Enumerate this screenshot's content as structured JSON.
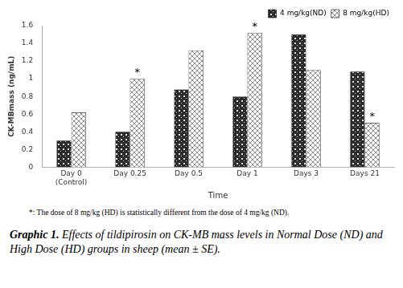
{
  "chart_data": {
    "type": "bar",
    "x_label": "Time",
    "y_label": "CK-MBmass (ng/mL)",
    "categories": [
      "Day 0 (Control)",
      "Day 0.25",
      "Day 0.5",
      "Day 1",
      "Days 3",
      "Days 21"
    ],
    "series": [
      {
        "name": "4 mg/kg(ND)",
        "color": "#2b2b2b",
        "values": [
          0.3,
          0.4,
          0.88,
          0.8,
          1.5,
          1.08
        ]
      },
      {
        "name": "8 mg/kg(HD)",
        "color": "#8c8c8c",
        "values": [
          0.62,
          1.0,
          1.32,
          1.52,
          1.1,
          0.5
        ]
      }
    ],
    "ylim": [
      0,
      1.6
    ],
    "yticks": [
      0,
      0.2,
      0.4,
      0.6,
      0.8,
      1,
      1.2,
      1.4,
      1.6
    ],
    "grid": false,
    "legend": "top-right",
    "annotations": [
      {
        "category": "Day 0.25",
        "series": "8 mg/kg(HD)",
        "text": "*"
      },
      {
        "category": "Day 1",
        "series": "8 mg/kg(HD)",
        "text": "*"
      },
      {
        "category": "Days 21",
        "series": "8 mg/kg(HD)",
        "text": "*"
      }
    ],
    "footnote": "*: The dose of 8 mg/kg (HD) is statistically different from the dose of 4 mg/kg (ND).",
    "caption": {
      "label": "Graphic 1.",
      "text": "Effects of tildipirosin on CK-MB mass levels in Normal Dose (ND) and High Dose (HD) groups in sheep (mean ± SE)."
    }
  }
}
